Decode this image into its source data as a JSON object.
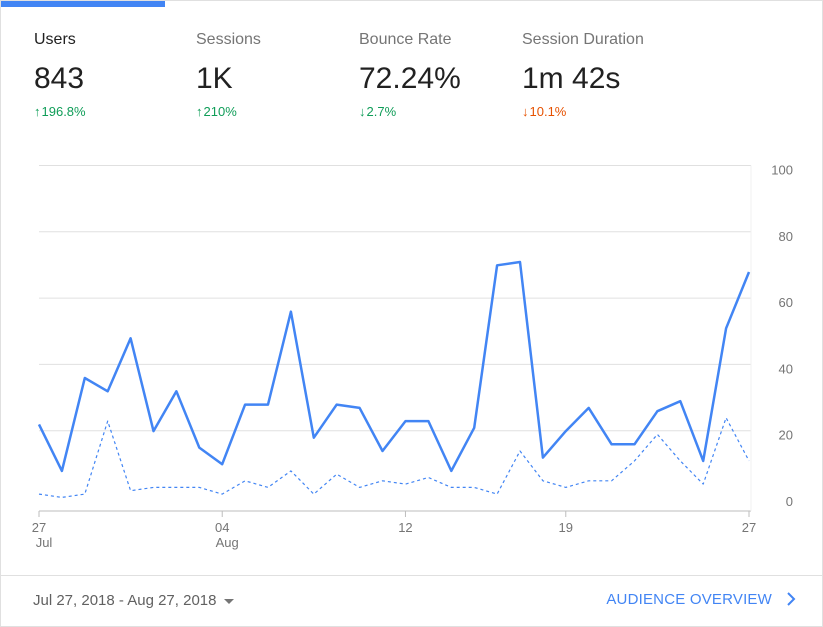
{
  "metrics": [
    {
      "label": "Users",
      "value": "843",
      "change": "196.8%",
      "direction": "up",
      "tone": "good"
    },
    {
      "label": "Sessions",
      "value": "1K",
      "change": "210%",
      "direction": "up",
      "tone": "good"
    },
    {
      "label": "Bounce Rate",
      "value": "72.24%",
      "change": "2.7%",
      "direction": "down",
      "tone": "good"
    },
    {
      "label": "Session Duration",
      "value": "1m 42s",
      "change": "10.1%",
      "direction": "down",
      "tone": "bad"
    }
  ],
  "colors": {
    "accent": "#4285f4",
    "positive": "#0f9d58",
    "negative": "#e65100",
    "grid": "#e0e0e0"
  },
  "footer": {
    "date_range": "Jul 27, 2018 - Aug 27, 2018",
    "overview_link": "AUDIENCE OVERVIEW",
    "chevron_icon": "chevron-right-icon",
    "caret_icon": "caret-down-icon"
  },
  "chart_data": {
    "type": "line",
    "ylim": [
      0,
      100
    ],
    "y_ticks": [
      0,
      20,
      40,
      60,
      80,
      100
    ],
    "x_tick_labels": [
      {
        "index": 0,
        "label": "27",
        "sub": "Jul"
      },
      {
        "index": 8,
        "label": "04",
        "sub": "Aug"
      },
      {
        "index": 16,
        "label": "12",
        "sub": ""
      },
      {
        "index": 23,
        "label": "19",
        "sub": ""
      },
      {
        "index": 31,
        "label": "27",
        "sub": ""
      }
    ],
    "series": [
      {
        "style": "solid",
        "values": [
          24,
          10,
          38,
          34,
          50,
          22,
          34,
          17,
          12,
          30,
          30,
          58,
          20,
          30,
          29,
          16,
          25,
          25,
          10,
          23,
          72,
          73,
          14,
          22,
          29,
          18,
          18,
          28,
          31,
          13,
          53,
          70
        ]
      },
      {
        "style": "dashed",
        "values": [
          3,
          2,
          3,
          25,
          4,
          5,
          5,
          5,
          3,
          7,
          5,
          10,
          3,
          9,
          5,
          7,
          6,
          8,
          5,
          5,
          3,
          16,
          7,
          5,
          7,
          7,
          13,
          21,
          13,
          6,
          26,
          13
        ]
      }
    ]
  }
}
